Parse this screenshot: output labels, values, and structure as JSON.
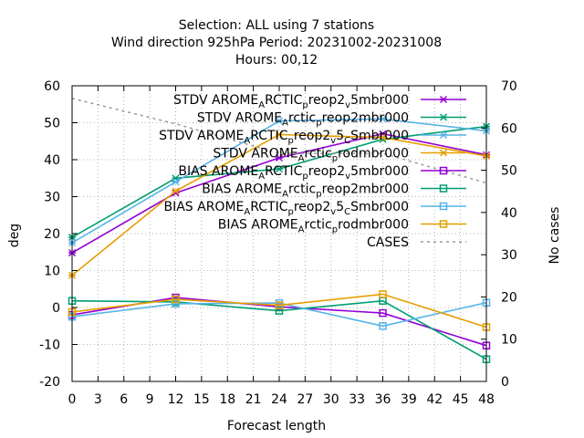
{
  "chart_data": {
    "type": "line",
    "title_lines": [
      "Selection: ALL using     7 stations",
      "Wind direction 925hPa   Period: 20231002-20231008",
      "Hours:  00,12"
    ],
    "xlabel": "Forecast length",
    "ylabel": "deg",
    "y2label": "No cases",
    "xlim": [
      0,
      48
    ],
    "ylim": [
      -20,
      60
    ],
    "y2lim": [
      0,
      70
    ],
    "xticks": [
      0,
      3,
      6,
      9,
      12,
      15,
      18,
      21,
      24,
      27,
      30,
      33,
      36,
      39,
      42,
      45,
      48
    ],
    "yticks": [
      -20,
      -10,
      0,
      10,
      20,
      30,
      40,
      50,
      60
    ],
    "y2ticks": [
      0,
      10,
      20,
      30,
      40,
      50,
      60,
      70
    ],
    "grid": true,
    "legend_position": "top-right",
    "x": [
      0,
      12,
      24,
      36,
      48
    ],
    "series": [
      {
        "name": "STDV AROME_ARCTIC_preop2_v_5mbr000",
        "legend_parts": [
          [
            "STDV AROME",
            "n"
          ],
          [
            "A",
            "sub"
          ],
          [
            "RCTIC",
            "n"
          ],
          [
            "p",
            "sub"
          ],
          [
            "reop2",
            "n"
          ],
          [
            "v",
            "sub"
          ],
          [
            "5mbr000",
            "n"
          ]
        ],
        "color": "#9400d3",
        "marker": "x",
        "axis": "y1",
        "values": [
          14.8,
          31.0,
          40.5,
          47.0,
          41.3
        ]
      },
      {
        "name": "STDV AROME_Arctic_preop2mbr000",
        "legend_parts": [
          [
            "STDV AROME",
            "n"
          ],
          [
            "A",
            "sub"
          ],
          [
            "rctic",
            "n"
          ],
          [
            "p",
            "sub"
          ],
          [
            "reop2mbr000",
            "n"
          ]
        ],
        "color": "#009e73",
        "marker": "x",
        "axis": "y1",
        "values": [
          19.0,
          35.0,
          37.5,
          45.5,
          49.0
        ]
      },
      {
        "name": "STDV AROME_ARCTIC_preop2_v_5_cSmbr000",
        "legend_parts": [
          [
            "STDV AROME",
            "n"
          ],
          [
            "A",
            "sub"
          ],
          [
            "RCTIC",
            "n"
          ],
          [
            "p",
            "sub"
          ],
          [
            "reop2",
            "n"
          ],
          [
            "v",
            "sub"
          ],
          [
            "5",
            "n"
          ],
          [
            "C",
            "sub"
          ],
          [
            "Smbr000",
            "n"
          ]
        ],
        "color": "#56b4e9",
        "marker": "x",
        "axis": "y1",
        "values": [
          17.5,
          34.0,
          50.5,
          51.0,
          47.8
        ]
      },
      {
        "name": "STDV AROME_Arctic_prodmbr000",
        "legend_parts": [
          [
            "STDV AROME",
            "n"
          ],
          [
            "A",
            "sub"
          ],
          [
            "rctic",
            "n"
          ],
          [
            "p",
            "sub"
          ],
          [
            "rodmbr000",
            "n"
          ]
        ],
        "color": "#e69f00",
        "marker": "x",
        "axis": "y1",
        "values": [
          8.7,
          31.5,
          46.8,
          46.0,
          41.0
        ]
      },
      {
        "name": "BIAS AROME_ARCTIC_preop2_v_5mbr000",
        "legend_parts": [
          [
            "BIAS AROME",
            "n"
          ],
          [
            "A",
            "sub"
          ],
          [
            "RCTIC",
            "n"
          ],
          [
            "p",
            "sub"
          ],
          [
            "reop2",
            "n"
          ],
          [
            "v",
            "sub"
          ],
          [
            "5mbr000",
            "n"
          ]
        ],
        "color": "#9400d3",
        "marker": "square",
        "axis": "y1",
        "values": [
          -2.0,
          2.7,
          0.2,
          -1.5,
          -10.3
        ]
      },
      {
        "name": "BIAS AROME_Arctic_preop2mbr000",
        "legend_parts": [
          [
            "BIAS AROME",
            "n"
          ],
          [
            "A",
            "sub"
          ],
          [
            "rctic",
            "n"
          ],
          [
            "p",
            "sub"
          ],
          [
            "reop2mbr000",
            "n"
          ]
        ],
        "color": "#009e73",
        "marker": "square",
        "axis": "y1",
        "values": [
          1.8,
          1.5,
          -0.9,
          1.8,
          -14.0
        ]
      },
      {
        "name": "BIAS AROME_ARCTIC_preop2_v_5_cSmbr000",
        "legend_parts": [
          [
            "BIAS AROME",
            "n"
          ],
          [
            "A",
            "sub"
          ],
          [
            "RCTIC",
            "n"
          ],
          [
            "p",
            "sub"
          ],
          [
            "reop2",
            "n"
          ],
          [
            "v",
            "sub"
          ],
          [
            "5",
            "n"
          ],
          [
            "C",
            "sub"
          ],
          [
            "Smbr000",
            "n"
          ]
        ],
        "color": "#56b4e9",
        "marker": "square",
        "axis": "y1",
        "values": [
          -2.5,
          1.0,
          1.2,
          -5.0,
          1.3
        ]
      },
      {
        "name": "BIAS AROME_Arctic_prodmbr000",
        "legend_parts": [
          [
            "BIAS AROME",
            "n"
          ],
          [
            "A",
            "sub"
          ],
          [
            "rctic",
            "n"
          ],
          [
            "p",
            "sub"
          ],
          [
            "rodmbr000",
            "n"
          ]
        ],
        "color": "#e69f00",
        "marker": "square",
        "axis": "y1",
        "values": [
          -1.2,
          2.2,
          0.6,
          3.6,
          -5.3
        ]
      },
      {
        "name": "CASES",
        "legend_parts": [
          [
            "CASES",
            "n"
          ]
        ],
        "color": "#999999",
        "marker": "none",
        "dashed": true,
        "axis": "y2",
        "values": [
          67,
          61,
          54,
          54,
          47
        ]
      }
    ]
  }
}
